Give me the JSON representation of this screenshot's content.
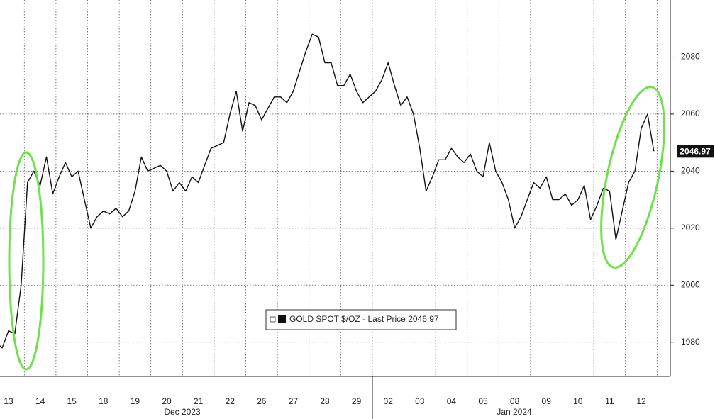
{
  "chart_data": {
    "type": "line",
    "categories": [
      null,
      null,
      "13",
      null,
      null,
      null,
      null,
      "14",
      null,
      null,
      null,
      null,
      "15",
      null,
      null,
      null,
      null,
      "18",
      null,
      null,
      null,
      null,
      "19",
      null,
      null,
      null,
      null,
      "20",
      null,
      null,
      null,
      null,
      "21",
      null,
      null,
      null,
      null,
      "22",
      null,
      null,
      null,
      null,
      "26",
      null,
      null,
      null,
      null,
      "27",
      null,
      null,
      null,
      null,
      "28",
      null,
      null,
      null,
      null,
      "29",
      null,
      null,
      null,
      null,
      "02",
      null,
      null,
      null,
      null,
      "03",
      null,
      null,
      null,
      null,
      "04",
      null,
      null,
      null,
      null,
      "05",
      null,
      null,
      null,
      null,
      "08",
      null,
      null,
      null,
      null,
      "09",
      null,
      null,
      null,
      null,
      "10",
      null,
      null,
      null,
      null,
      "11",
      null,
      null,
      null,
      null,
      "12",
      null,
      null
    ],
    "x_group_labels": [
      "Dec 2023",
      "Jan 2024"
    ],
    "series": [
      {
        "name": "GOLD SPOT $/OZ",
        "color": "#111111",
        "values": [
          1980,
          1978,
          1984,
          1983,
          2000,
          2036,
          2040,
          2035,
          2045,
          2032,
          2038,
          2043,
          2038,
          2040,
          2030,
          2020,
          2024,
          2026,
          2025,
          2027,
          2024,
          2026,
          2033,
          2045,
          2040,
          2041,
          2042,
          2040,
          2033,
          2036,
          2033,
          2038,
          2036,
          2042,
          2048,
          2049,
          2050,
          2060,
          2068,
          2054,
          2064,
          2063,
          2058,
          2062,
          2066,
          2066,
          2064,
          2068,
          2075,
          2082,
          2088,
          2087,
          2078,
          2078,
          2070,
          2070,
          2074,
          2068,
          2064,
          2066,
          2068,
          2072,
          2078,
          2070,
          2063,
          2066,
          2060,
          2048,
          2033,
          2038,
          2044,
          2044,
          2048,
          2045,
          2043,
          2046,
          2040,
          2038,
          2050,
          2040,
          2036,
          2030,
          2020,
          2024,
          2030,
          2036,
          2034,
          2038,
          2030,
          2030,
          2032,
          2028,
          2030,
          2035,
          2023,
          2028,
          2034,
          2033,
          2016,
          2026,
          2036,
          2040,
          2055,
          2060,
          2046.97
        ]
      }
    ],
    "legend_text": "- Last Price",
    "ylim": [
      1968,
      2100
    ],
    "yticks": [
      1980,
      2000,
      2020,
      2040,
      2060,
      2080
    ],
    "grid": true
  }
}
